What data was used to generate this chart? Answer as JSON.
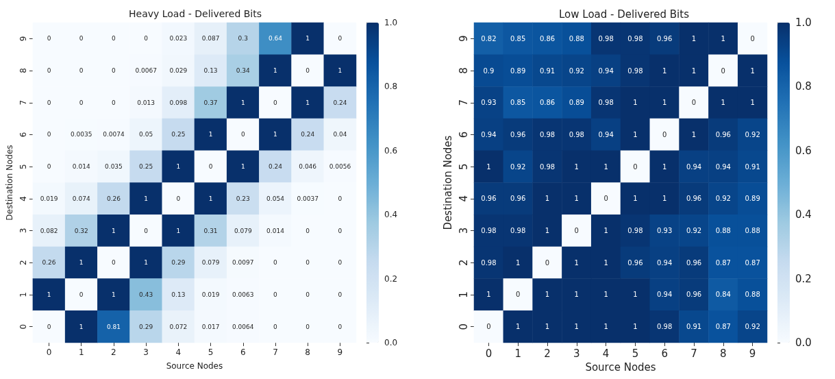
{
  "chart_data": [
    {
      "type": "heatmap",
      "title": "Heavy Load - Delivered Bits",
      "xlabel": "Source Nodes",
      "ylabel": "Destination Nodes",
      "categories": [
        "0",
        "1",
        "2",
        "3",
        "4",
        "5",
        "6",
        "7",
        "8",
        "9"
      ],
      "y_categories": [
        "9",
        "8",
        "7",
        "6",
        "5",
        "4",
        "3",
        "2",
        "1",
        "0"
      ],
      "cells": [
        [
          0,
          0,
          0,
          0,
          0.023,
          0.087,
          0.3,
          0.64,
          1,
          0
        ],
        [
          0,
          0,
          0,
          0.0067,
          0.029,
          0.13,
          0.34,
          1,
          0,
          1
        ],
        [
          0,
          0,
          0,
          0.013,
          0.098,
          0.37,
          1,
          0,
          1,
          0.24
        ],
        [
          0,
          0.0035,
          0.0074,
          0.05,
          0.25,
          1,
          0,
          1,
          0.24,
          0.04
        ],
        [
          0,
          0.014,
          0.035,
          0.25,
          1,
          0,
          1,
          0.24,
          0.046,
          0.0056
        ],
        [
          0.019,
          0.074,
          0.26,
          1,
          0,
          1,
          0.23,
          0.054,
          0.0037,
          0
        ],
        [
          0.082,
          0.32,
          1,
          0,
          1,
          0.31,
          0.079,
          0.014,
          0,
          0
        ],
        [
          0.26,
          1,
          0,
          1,
          0.29,
          0.079,
          0.0097,
          0,
          0,
          0
        ],
        [
          1,
          0,
          1,
          0.43,
          0.13,
          0.019,
          0.0063,
          0,
          0,
          0
        ],
        [
          0,
          1,
          0.81,
          0.29,
          0.072,
          0.017,
          0.0064,
          0,
          0,
          0
        ]
      ],
      "clim": [
        0,
        1
      ],
      "cticks": [
        {
          "value": 0,
          "label": "0.0"
        },
        {
          "value": 0.2,
          "label": "0.2"
        },
        {
          "value": 0.4,
          "label": "0.4"
        },
        {
          "value": 0.6,
          "label": "0.6"
        },
        {
          "value": 0.8,
          "label": "0.8"
        },
        {
          "value": 1,
          "label": "1.0"
        }
      ],
      "data_labels": true
    },
    {
      "type": "heatmap",
      "title": "Low Load - Delivered Bits",
      "xlabel": "Source Nodes",
      "ylabel": "Destination Nodes",
      "categories": [
        "0",
        "1",
        "2",
        "3",
        "4",
        "5",
        "6",
        "7",
        "8",
        "9"
      ],
      "y_categories": [
        "9",
        "8",
        "7",
        "6",
        "5",
        "4",
        "3",
        "2",
        "1",
        "0"
      ],
      "cells": [
        [
          0.82,
          0.85,
          0.86,
          0.88,
          0.98,
          0.98,
          0.96,
          1,
          1,
          0
        ],
        [
          0.9,
          0.89,
          0.91,
          0.92,
          0.94,
          0.98,
          1,
          1,
          0,
          1
        ],
        [
          0.93,
          0.85,
          0.86,
          0.89,
          0.98,
          1,
          1,
          0,
          1,
          1
        ],
        [
          0.94,
          0.96,
          0.98,
          0.98,
          0.94,
          1,
          0,
          1,
          0.96,
          0.92
        ],
        [
          1,
          0.92,
          0.98,
          1,
          1,
          0,
          1,
          0.94,
          0.94,
          0.91
        ],
        [
          0.96,
          0.96,
          1,
          1,
          0,
          1,
          1,
          0.96,
          0.92,
          0.89
        ],
        [
          0.98,
          0.98,
          1,
          0,
          1,
          0.98,
          0.93,
          0.92,
          0.88,
          0.88
        ],
        [
          0.98,
          1,
          0,
          1,
          1,
          0.96,
          0.94,
          0.96,
          0.87,
          0.87
        ],
        [
          1,
          0,
          1,
          1,
          1,
          1,
          0.94,
          0.96,
          0.84,
          0.88
        ],
        [
          0,
          1,
          1,
          1,
          1,
          1,
          0.98,
          0.91,
          0.87,
          0.92
        ]
      ],
      "clim": [
        0,
        1
      ],
      "cticks": [
        {
          "value": 0,
          "label": "0.0"
        },
        {
          "value": 0.2,
          "label": "0.2"
        },
        {
          "value": 0.4,
          "label": "0.4"
        },
        {
          "value": 0.6,
          "label": "0.6"
        },
        {
          "value": 0.8,
          "label": "0.8"
        },
        {
          "value": 1,
          "label": "1.0"
        }
      ],
      "data_labels": true
    }
  ]
}
